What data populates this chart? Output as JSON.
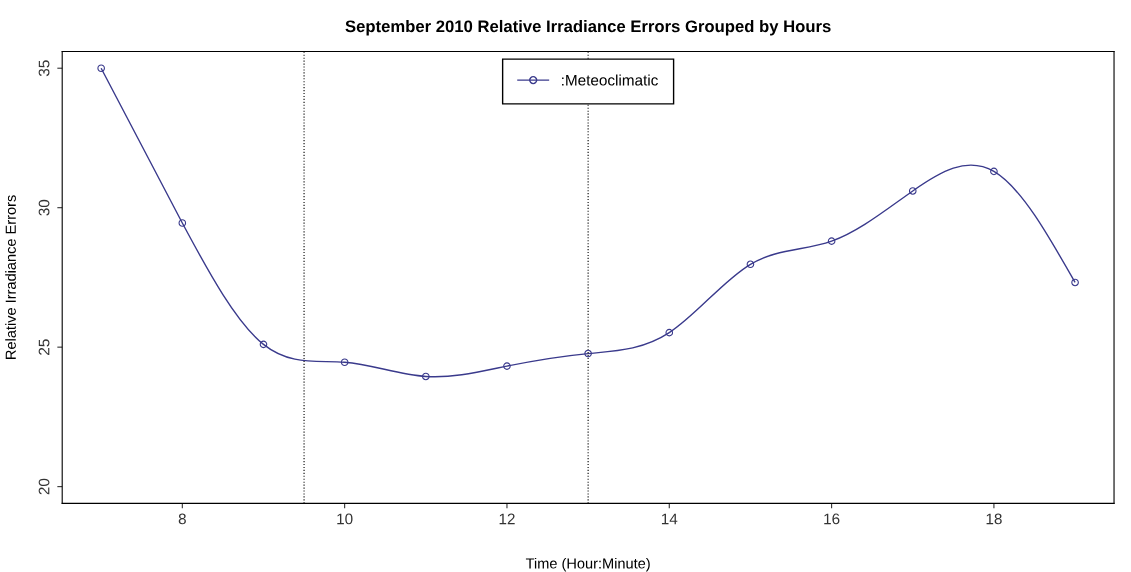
{
  "chart_data": {
    "type": "line",
    "title": "September 2010 Relative Irradiance Errors Grouped by Hours",
    "xlabel": "Time (Hour:Minute)",
    "ylabel": "Relative Irradiance Errors",
    "x": [
      7,
      8,
      9,
      10,
      11,
      12,
      13,
      14,
      15,
      16,
      17,
      18,
      19
    ],
    "series": [
      {
        "name": ":Meteoclimatic",
        "color": "#3a3a8c",
        "values": [
          35.0,
          29.45,
          25.1,
          24.46,
          23.95,
          24.32,
          24.77,
          25.52,
          27.97,
          28.8,
          30.6,
          31.3,
          27.32
        ]
      }
    ],
    "xlim": [
      6.52,
      19.48
    ],
    "ylim": [
      19.4,
      35.6
    ],
    "xticks": [
      8,
      10,
      12,
      14,
      16,
      18
    ],
    "yticks": [
      20,
      25,
      30,
      35
    ],
    "ref_lines": [
      {
        "axis": "x",
        "value": 9.5,
        "line_style": "dotted",
        "color": "#000000"
      },
      {
        "axis": "x",
        "value": 13,
        "line_style": "dotted",
        "color": "#000000"
      }
    ],
    "marker": "circle",
    "line_style": "solid",
    "legend": "top",
    "grid": false
  }
}
